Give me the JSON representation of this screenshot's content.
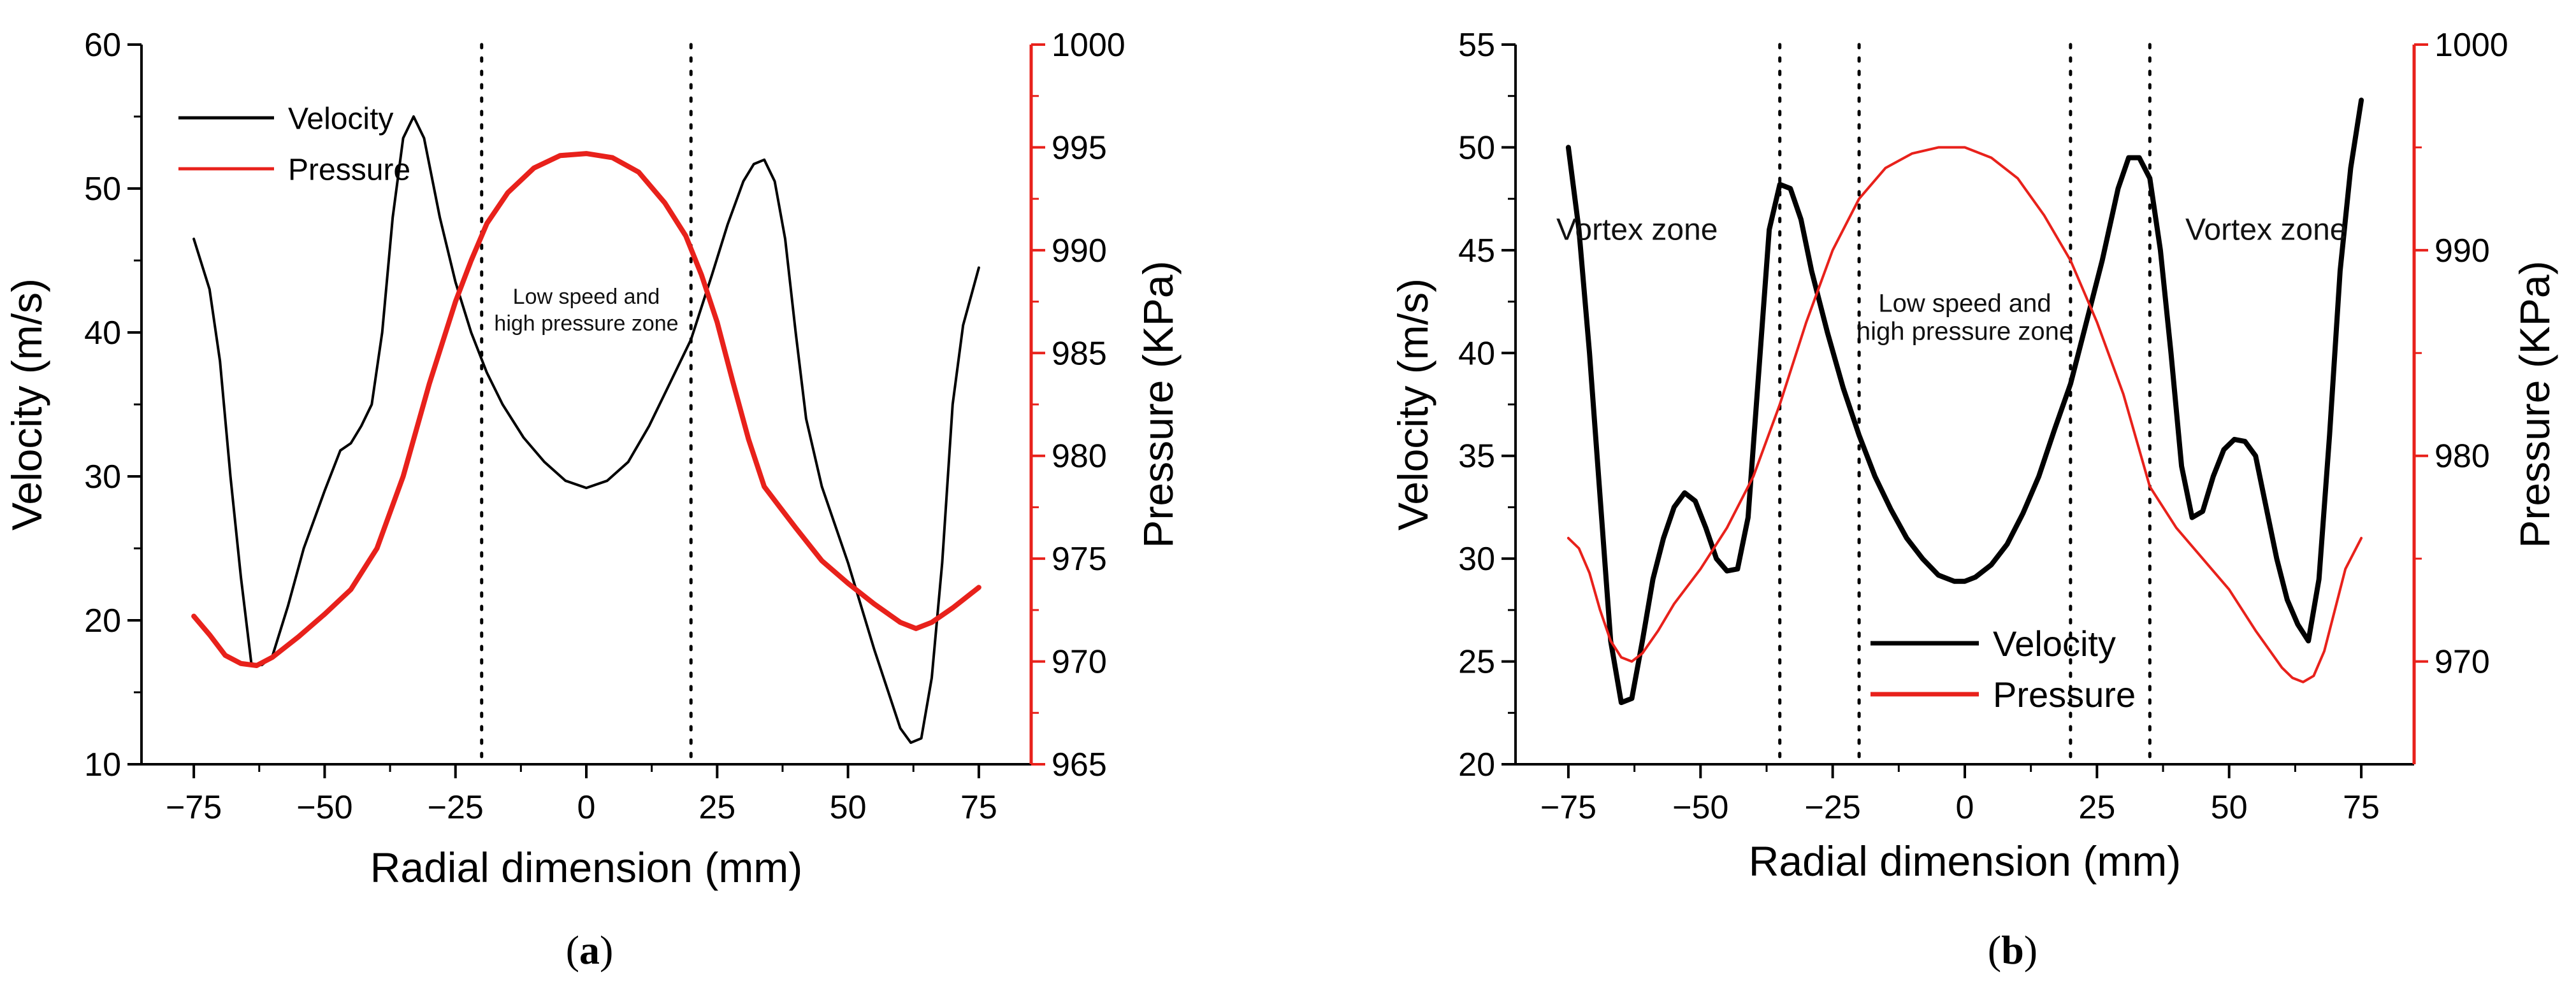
{
  "colors": {
    "velocity": "#000000",
    "pressure": "#e8211b",
    "axis": "#000000",
    "right_axis": "#e8211b"
  },
  "chart_data": [
    {
      "type": "line",
      "panel_label": "a",
      "xlabel": "Radial dimension (mm)",
      "ylabel": "Velocity (m/s)",
      "y2label": "Pressure (KPa)",
      "xlim": [
        -85,
        85
      ],
      "ylim": [
        10,
        60
      ],
      "y2lim": [
        965,
        1000
      ],
      "xticks": [
        -75,
        -50,
        -25,
        0,
        25,
        50,
        75
      ],
      "yticks": [
        10,
        20,
        30,
        40,
        50,
        60
      ],
      "y2ticks": [
        965,
        970,
        975,
        980,
        985,
        990,
        995,
        1000
      ],
      "vlines": [
        -20,
        20
      ],
      "legend": {
        "placement": "top-left",
        "entries": [
          "Velocity",
          "Pressure"
        ]
      },
      "annotations": [
        {
          "lines": [
            "Low speed and",
            "high pressure zone"
          ],
          "x": 0,
          "y": 42
        }
      ],
      "series": [
        {
          "name": "Velocity",
          "axis": "left",
          "x": [
            -75,
            -72,
            -70,
            -68,
            -66,
            -64,
            -62,
            -60,
            -57,
            -54,
            -50,
            -47,
            -45,
            -43,
            -41,
            -39,
            -37,
            -35,
            -33,
            -31,
            -28,
            -25,
            -22,
            -19,
            -16,
            -12,
            -8,
            -4,
            0,
            4,
            8,
            12,
            16,
            20,
            24,
            27,
            30,
            32,
            34,
            36,
            38,
            40,
            42,
            45,
            50,
            55,
            60,
            62,
            64,
            66,
            68,
            70,
            72,
            75
          ],
          "values": [
            46.5,
            43,
            38,
            30,
            23,
            17,
            16.9,
            17.5,
            21,
            25,
            29,
            31.8,
            32.3,
            33.5,
            35,
            40,
            48,
            53.5,
            55,
            53.5,
            48,
            43.5,
            40,
            37.2,
            35,
            32.7,
            31,
            29.7,
            29.2,
            29.7,
            31,
            33.5,
            36.5,
            39.5,
            44,
            47.5,
            50.5,
            51.7,
            52,
            50.5,
            46.5,
            40,
            34,
            29.3,
            24,
            18,
            12.5,
            11.5,
            11.8,
            16,
            24,
            35,
            40.5,
            44.5
          ]
        },
        {
          "name": "Pressure",
          "axis": "right",
          "x": [
            -75,
            -72,
            -69,
            -66,
            -63,
            -60,
            -55,
            -50,
            -45,
            -40,
            -35,
            -30,
            -25,
            -22,
            -19,
            -15,
            -10,
            -5,
            0,
            5,
            10,
            15,
            19,
            22,
            25,
            28,
            31,
            34,
            37,
            40,
            45,
            50,
            55,
            60,
            63,
            66,
            70,
            75
          ],
          "values": [
            972.2,
            971.3,
            970.3,
            969.9,
            969.8,
            970.2,
            971.2,
            972.3,
            973.5,
            975.5,
            979,
            983.5,
            987.5,
            989.5,
            991.3,
            992.8,
            994,
            994.6,
            994.7,
            994.5,
            993.8,
            992.3,
            990.7,
            988.8,
            986.5,
            983.6,
            980.8,
            978.5,
            977.5,
            976.5,
            974.9,
            973.8,
            972.8,
            971.9,
            971.6,
            971.9,
            972.6,
            973.6
          ]
        }
      ]
    },
    {
      "type": "line",
      "panel_label": "b",
      "xlabel": "Radial dimension (mm)",
      "ylabel": "Velocity (m/s)",
      "y2label": "Pressure (KPa)",
      "xlim": [
        -85,
        85
      ],
      "ylim": [
        20,
        55
      ],
      "y2lim": [
        965,
        1000
      ],
      "xticks": [
        -75,
        -50,
        -25,
        0,
        25,
        50,
        75
      ],
      "yticks": [
        20,
        25,
        30,
        35,
        40,
        45,
        50,
        55
      ],
      "y2ticks": [
        970,
        980,
        990,
        1000
      ],
      "vlines": [
        -35,
        -20,
        20,
        35
      ],
      "legend": {
        "placement": "bottom-center",
        "entries": [
          "Velocity",
          "Pressure"
        ]
      },
      "annotations": [
        {
          "lines": [
            "Vortex zone"
          ],
          "x": -62,
          "y": 45.5
        },
        {
          "lines": [
            "Low speed and",
            "high pressure zone"
          ],
          "x": 0,
          "y": 42
        },
        {
          "lines": [
            "Vortex zone"
          ],
          "x": 57,
          "y": 45.5
        }
      ],
      "series": [
        {
          "name": "Velocity",
          "axis": "left",
          "x": [
            -75,
            -73,
            -71,
            -69,
            -67,
            -65,
            -63,
            -61,
            -59,
            -57,
            -55,
            -53,
            -51,
            -49,
            -47,
            -45,
            -43,
            -41,
            -39,
            -37,
            -35,
            -33,
            -31,
            -29,
            -26,
            -23,
            -20,
            -17,
            -14,
            -11,
            -8,
            -5,
            -2,
            0,
            2,
            5,
            8,
            11,
            14,
            17,
            20,
            23,
            26,
            29,
            31,
            33,
            35,
            37,
            39,
            41,
            43,
            45,
            47,
            49,
            51,
            53,
            55,
            57,
            59,
            61,
            63,
            65,
            67,
            69,
            71,
            73,
            75
          ],
          "values": [
            50,
            46,
            40,
            33,
            26,
            23,
            23.2,
            26,
            29,
            31,
            32.5,
            33.2,
            32.8,
            31.5,
            30,
            29.4,
            29.5,
            32,
            39,
            46,
            48.2,
            48,
            46.5,
            44,
            41,
            38.3,
            36,
            34,
            32.4,
            31,
            30,
            29.2,
            28.9,
            28.9,
            29.1,
            29.7,
            30.7,
            32.2,
            34,
            36.3,
            38.5,
            41.5,
            44.5,
            48,
            49.5,
            49.5,
            48.5,
            45,
            40,
            34.5,
            32,
            32.3,
            34,
            35.3,
            35.8,
            35.7,
            35,
            32.5,
            30,
            28,
            26.8,
            26,
            29,
            36,
            44,
            49,
            52.3
          ]
        },
        {
          "name": "Pressure",
          "axis": "right",
          "x": [
            -75,
            -73,
            -71,
            -69,
            -67,
            -65,
            -63,
            -61,
            -58,
            -55,
            -50,
            -45,
            -40,
            -35,
            -30,
            -25,
            -20,
            -15,
            -10,
            -5,
            0,
            5,
            10,
            15,
            20,
            25,
            30,
            35,
            40,
            45,
            50,
            55,
            60,
            62,
            64,
            66,
            68,
            70,
            72,
            75
          ],
          "values": [
            976,
            975.5,
            974.3,
            972.5,
            971,
            970.2,
            970,
            970.4,
            971.5,
            972.8,
            974.5,
            976.5,
            979,
            982.5,
            986.5,
            990,
            992.5,
            994,
            994.7,
            995,
            995,
            994.5,
            993.5,
            991.7,
            989.5,
            986.5,
            983,
            978.5,
            976.5,
            975,
            973.5,
            971.5,
            969.7,
            969.2,
            969,
            969.3,
            970.5,
            972.5,
            974.5,
            976
          ]
        }
      ]
    }
  ],
  "captions": [
    "(a)",
    "(b)"
  ]
}
